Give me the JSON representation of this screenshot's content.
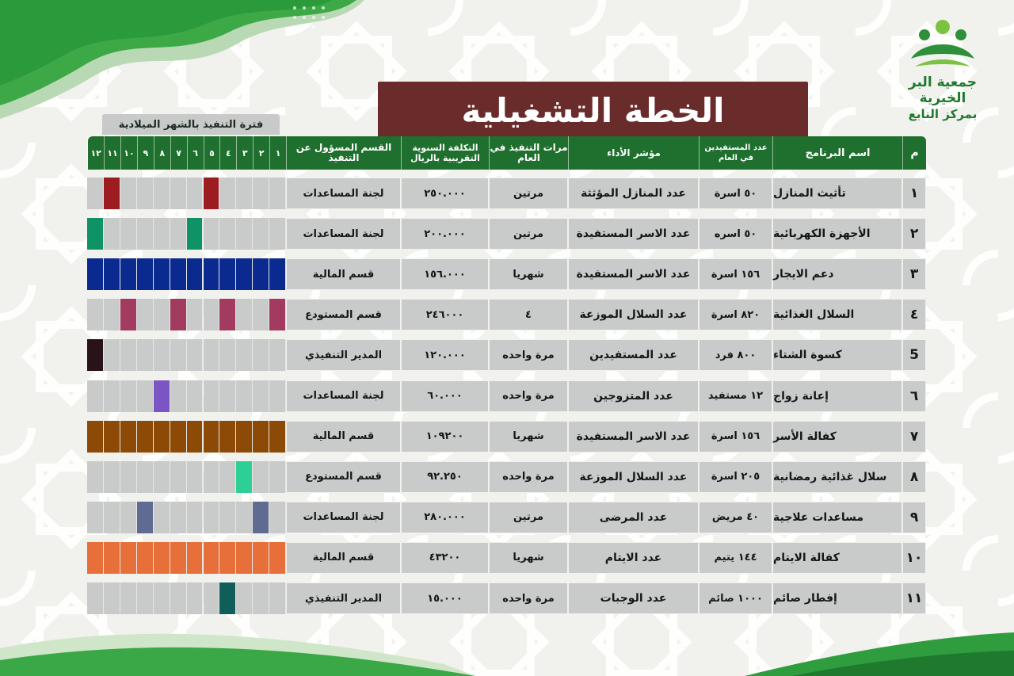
{
  "header": {
    "title": "الخطة التشغيلية",
    "period_label": "فترة التنفيذ بالشهر الميلادية"
  },
  "logo": {
    "line1": "جمعية البر الخيرية",
    "line2": "بمركز النابع",
    "colors": {
      "green": "#2f8f3a",
      "light_green": "#7cc242"
    }
  },
  "columns": {
    "index": "م",
    "name": "اسم البرنامج",
    "beneficiaries": "عدد المستفيدين في العام",
    "indicator": "مؤشر الأداء",
    "frequency": "مرات التنفيذ في العام",
    "cost": "التكلفة السنوية التقريبية بالريال",
    "department": "القسم المسؤول عن التنفيذ",
    "months": [
      "١",
      "٢",
      "٣",
      "٤",
      "٥",
      "٦",
      "٧",
      "٨",
      "٩",
      "١٠",
      "١١",
      "١٢"
    ]
  },
  "colors": {
    "header_green": "#1f6f2e",
    "title_maroon": "#6a2b2b",
    "cell_gray": "#c8cbca",
    "page_bg": "#f1f1ee"
  },
  "rows": [
    {
      "index": "١",
      "name": "تأثيث المنازل",
      "beneficiaries": "٥٠ اسرة",
      "indicator": "عدد المنازل المؤثثة",
      "frequency": "مرتين",
      "cost": "٢٥٠.٠٠٠",
      "department": "لجنة المساعدات",
      "color": "#9b1d22",
      "months": [
        5,
        11
      ]
    },
    {
      "index": "٢",
      "name": "الأجهزة الكهربائية",
      "beneficiaries": "٥٠ اسره",
      "indicator": "عدد الاسر المستفيدة",
      "frequency": "مرتين",
      "cost": "٢٠٠.٠٠٠",
      "department": "لجنة المساعدات",
      "color": "#0f9366",
      "months": [
        6,
        12
      ]
    },
    {
      "index": "٣",
      "name": "دعم الايجار",
      "beneficiaries": "١٥٦ اسرة",
      "indicator": "عدد الاسر المستفيدة",
      "frequency": "شهريا",
      "cost": "١٥٦.٠٠٠",
      "department": "قسم المالية",
      "color": "#0b2a8f",
      "months": [
        1,
        2,
        3,
        4,
        5,
        6,
        7,
        8,
        9,
        10,
        11,
        12
      ]
    },
    {
      "index": "٤",
      "name": "السلال الغذائية",
      "beneficiaries": "٨٢٠ اسرة",
      "indicator": "عدد السلال الموزعة",
      "frequency": "٤",
      "cost": "٢٤٦٠٠٠",
      "department": "قسم المستودع",
      "color": "#a33a5f",
      "months": [
        1,
        4,
        7,
        10
      ]
    },
    {
      "index": "5",
      "name": "كسوة الشتاء",
      "beneficiaries": "٨٠٠ فرد",
      "indicator": "عدد المستفيدين",
      "frequency": "مرة واحده",
      "cost": "١٢٠.٠٠٠",
      "department": "المدير التنفيذي",
      "color": "#2a1219",
      "months": [
        12
      ]
    },
    {
      "index": "٦",
      "name": "إعانة زواج",
      "beneficiaries": "١٢ مستفيد",
      "indicator": "عدد المتزوجين",
      "frequency": "مرة واحده",
      "cost": "٦٠.٠٠٠",
      "department": "لجنة المساعدات",
      "color": "#7b55c4",
      "months": [
        8
      ]
    },
    {
      "index": "٧",
      "name": "كفالة الأسر",
      "beneficiaries": "١٥٦ اسرة",
      "indicator": "عدد الاسر المستفيدة",
      "frequency": "شهريا",
      "cost": "١٠٩٢٠٠",
      "department": "قسم المالية",
      "color": "#8c4a06",
      "months": [
        1,
        2,
        3,
        4,
        5,
        6,
        7,
        8,
        9,
        10,
        11,
        12
      ]
    },
    {
      "index": "٨",
      "name": "سلال غذائية رمضانية",
      "beneficiaries": "٢٠٥ اسرة",
      "indicator": "عدد السلال الموزعة",
      "frequency": "مرة واحده",
      "cost": "٩٢.٢٥٠",
      "department": "قسم المستودع",
      "color": "#2dcf95",
      "months": [
        3
      ]
    },
    {
      "index": "٩",
      "name": "مساعدات علاجية",
      "beneficiaries": "٤٠ مريض",
      "indicator": "عدد المرضى",
      "frequency": "مرتين",
      "cost": "٢٨٠.٠٠٠",
      "department": "لجنة المساعدات",
      "color": "#5f6b90",
      "months": [
        2,
        9
      ]
    },
    {
      "index": "١٠",
      "name": "كفالة الايتام",
      "beneficiaries": "١٤٤ يتيم",
      "indicator": "عدد الايتام",
      "frequency": "شهريا",
      "cost": "٤٣٢٠٠",
      "department": "قسم المالية",
      "color": "#e66f3a",
      "months": [
        1,
        2,
        3,
        4,
        5,
        6,
        7,
        8,
        9,
        10,
        11,
        12
      ]
    },
    {
      "index": "١١",
      "name": "إفطار صائم",
      "beneficiaries": "١٠٠٠ صائم",
      "indicator": "عدد الوجبات",
      "frequency": "مرة واحده",
      "cost": "١٥.٠٠٠",
      "department": "المدير التنفيذي",
      "color": "#0f5e5a",
      "months": [
        4
      ]
    }
  ]
}
